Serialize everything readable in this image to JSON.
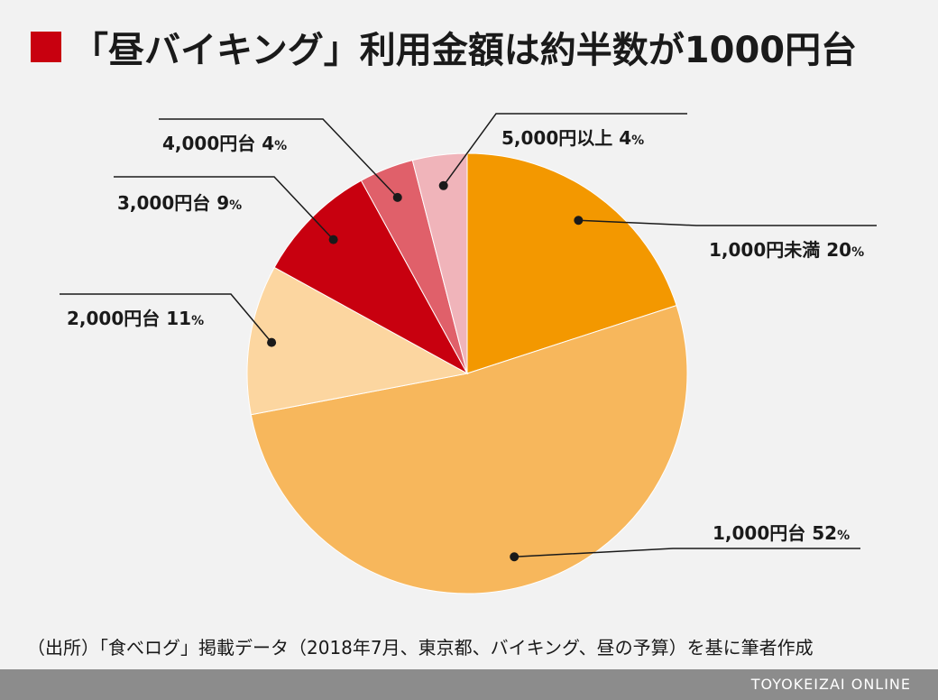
{
  "title": "「昼バイキング」利用金額は約半数が1000円台",
  "accent_color": "#c8000f",
  "chart_data": {
    "type": "pie",
    "title": "「昼バイキング」利用金額は約半数が1000円台",
    "start": "12 o'clock",
    "direction": "clockwise",
    "unit": "%",
    "slices": [
      {
        "label": "1,000円未満",
        "value": 20,
        "color": "#f39800"
      },
      {
        "label": "1,000円台",
        "value": 52,
        "color": "#f7b75c"
      },
      {
        "label": "2,000円台",
        "value": 11,
        "color": "#fcd6a0"
      },
      {
        "label": "3,000円台",
        "value": 9,
        "color": "#c8000f"
      },
      {
        "label": "4,000円台",
        "value": 4,
        "color": "#e0606a"
      },
      {
        "label": "5,000円以上",
        "value": 4,
        "color": "#f0b4ba"
      }
    ]
  },
  "source": "（出所）「食べログ」掲載データ（2018年7月、東京都、バイキング、昼の予算）を基に筆者作成",
  "footer": {
    "brand": "TOYOKEIZAI ONLINE"
  }
}
